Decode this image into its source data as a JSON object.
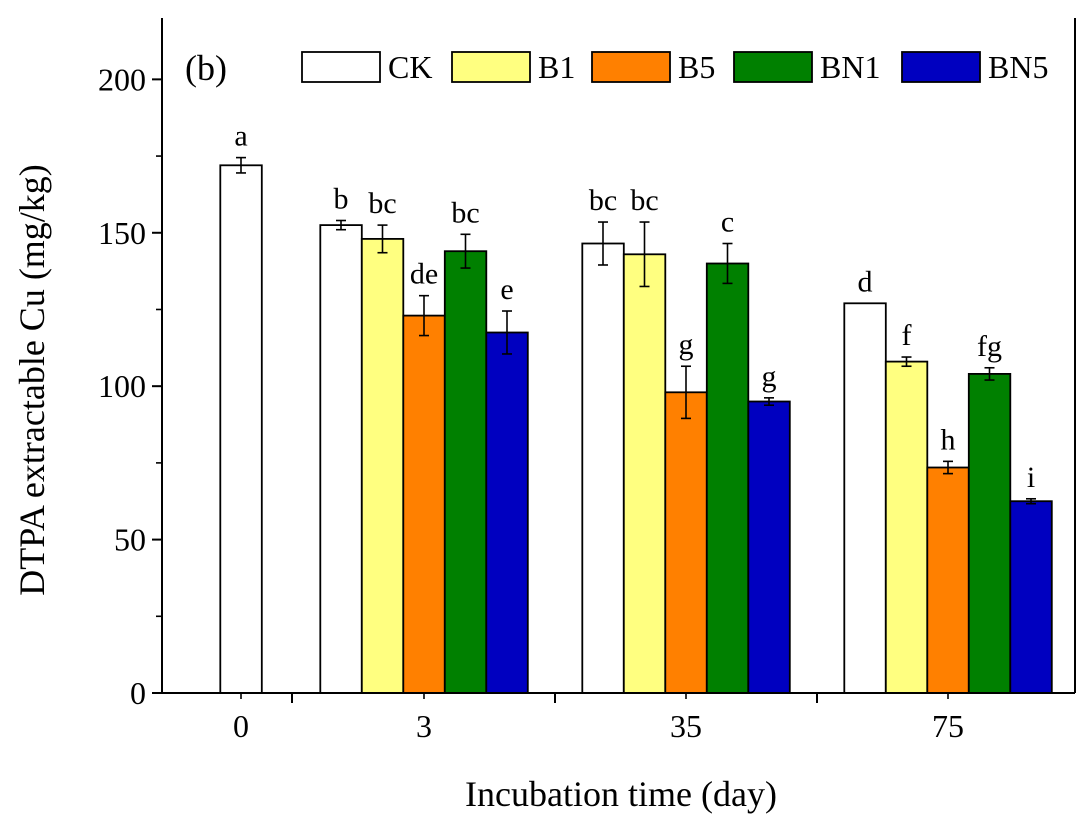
{
  "chart_data": {
    "type": "bar",
    "panel_label": "(b)",
    "xlabel": "Incubation time (day)",
    "ylabel": "DTPA extractable Cu (mg/kg)",
    "ylim": [
      0,
      220
    ],
    "yticks": [
      0,
      50,
      100,
      150,
      200
    ],
    "categories": [
      "0",
      "3",
      "35",
      "75"
    ],
    "legend_position": "top-right",
    "series": [
      {
        "name": "CK",
        "color": "#ffffff",
        "values": [
          172,
          152.5,
          146.5,
          127
        ],
        "errors": [
          2.5,
          1.5,
          7,
          null
        ],
        "labels": [
          "a",
          "b",
          "bc",
          "d"
        ]
      },
      {
        "name": "B1",
        "color": "#ffff80",
        "values": [
          null,
          148,
          143,
          108
        ],
        "errors": [
          null,
          4.5,
          10.5,
          1.5
        ],
        "labels": [
          null,
          "bc",
          "bc",
          "f"
        ]
      },
      {
        "name": "B5",
        "color": "#ff8000",
        "values": [
          null,
          123,
          98,
          73.5
        ],
        "errors": [
          null,
          6.5,
          8.5,
          2
        ],
        "labels": [
          null,
          "de",
          "g",
          "h"
        ]
      },
      {
        "name": "BN1",
        "color": "#008000",
        "values": [
          null,
          144,
          140,
          104
        ],
        "errors": [
          null,
          5.5,
          6.5,
          2
        ],
        "labels": [
          null,
          "bc",
          "c",
          "fg"
        ]
      },
      {
        "name": "BN5",
        "color": "#0000c0",
        "values": [
          null,
          117.5,
          95,
          62.5
        ],
        "errors": [
          null,
          7,
          1.2,
          0.8
        ],
        "labels": [
          null,
          "e",
          "g",
          "i"
        ]
      }
    ]
  }
}
